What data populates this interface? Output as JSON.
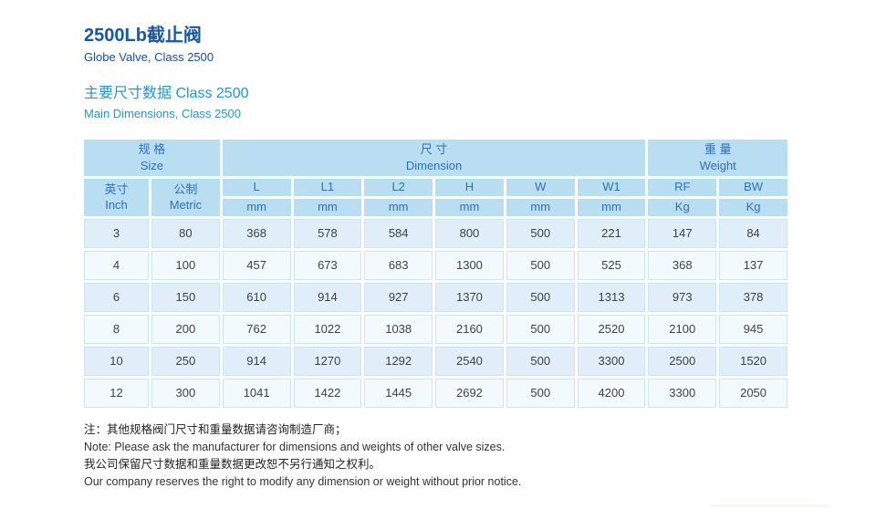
{
  "header": {
    "title_zh": "2500Lb截止阀",
    "title_en": "Globe Valve, Class 2500",
    "section_zh": "主要尺寸数据 Class 2500",
    "section_en": "Main Dimensions, Class 2500"
  },
  "table": {
    "groups": [
      {
        "zh": "规 格",
        "en": "Size"
      },
      {
        "zh": "尺 寸",
        "en": "Dimension"
      },
      {
        "zh": "重 量",
        "en": "Weight"
      }
    ],
    "columns": [
      {
        "zh": "英寸",
        "en": "Inch"
      },
      {
        "zh": "公制",
        "en": "Metric"
      },
      {
        "label": "L",
        "unit": "mm"
      },
      {
        "label": "L1",
        "unit": "mm"
      },
      {
        "label": "L2",
        "unit": "mm"
      },
      {
        "label": "H",
        "unit": "mm"
      },
      {
        "label": "W",
        "unit": "mm"
      },
      {
        "label": "W1",
        "unit": "mm"
      },
      {
        "label": "RF",
        "unit": "Kg"
      },
      {
        "label": "BW",
        "unit": "Kg"
      }
    ],
    "rows": [
      {
        "cells": [
          "3",
          "80",
          "368",
          "578",
          "584",
          "800",
          "500",
          "221",
          "147",
          "84"
        ]
      },
      {
        "cells": [
          "4",
          "100",
          "457",
          "673",
          "683",
          "1300",
          "500",
          "525",
          "368",
          "137"
        ]
      },
      {
        "cells": [
          "6",
          "150",
          "610",
          "914",
          "927",
          "1370",
          "500",
          "1313",
          "973",
          "378"
        ]
      },
      {
        "cells": [
          "8",
          "200",
          "762",
          "1022",
          "1038",
          "2160",
          "500",
          "2520",
          "2100",
          "945"
        ]
      },
      {
        "cells": [
          "10",
          "250",
          "914",
          "1270",
          "1292",
          "2540",
          "500",
          "3300",
          "2500",
          "1520"
        ]
      },
      {
        "cells": [
          "12",
          "300",
          "1041",
          "1422",
          "1445",
          "2692",
          "500",
          "4200",
          "3300",
          "2050"
        ]
      }
    ]
  },
  "notes": [
    "注：其他规格阀门尺寸和重量数据请咨询制造厂商；",
    "Note: Please ask the manufacturer for dimensions and weights of other valve sizes.",
    "我公司保留尺寸数据和重量数据更改恕不另行通知之权利。",
    "Our company reserves the right to modify any dimension or weight without prior notice."
  ],
  "colors": {
    "title_blue": "#1757a6",
    "section_blue": "#2396cf",
    "header_cell_bg": "#b9def2",
    "header_text": "#2e71b4",
    "row_odd_bg": "#dfeef8",
    "row_even_bg": "#f3fafd",
    "cell_border": "#cde4f1"
  }
}
